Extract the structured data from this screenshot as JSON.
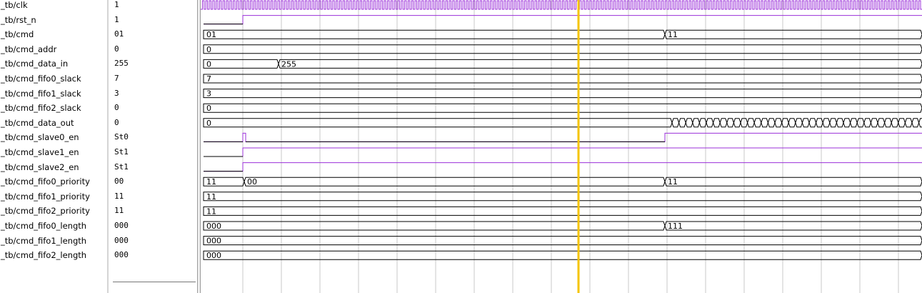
{
  "signals": [
    {
      "name": "_tb/clk",
      "value": "1"
    },
    {
      "name": "_tb/rst_n",
      "value": "1"
    },
    {
      "name": "_tb/cmd",
      "value": "01"
    },
    {
      "name": "_tb/cmd_addr",
      "value": "0"
    },
    {
      "name": "_tb/cmd_data_in",
      "value": "255"
    },
    {
      "name": "_tb/cmd_fifo0_slack",
      "value": "7"
    },
    {
      "name": "_tb/cmd_fifo1_slack",
      "value": "3"
    },
    {
      "name": "_tb/cmd_fifo2_slack",
      "value": "0"
    },
    {
      "name": "_tb/cmd_data_out",
      "value": "0"
    },
    {
      "name": "_tb/cmd_slave0_en",
      "value": "St0"
    },
    {
      "name": "_tb/cmd_slave1_en",
      "value": "St1"
    },
    {
      "name": "_tb/cmd_slave2_en",
      "value": "St1"
    },
    {
      "name": "_tb/cmd_fifo0_priority",
      "value": "00"
    },
    {
      "name": "_tb/cmd_fifo1_priority",
      "value": "11"
    },
    {
      "name": "_tb/cmd_fifo2_priority",
      "value": "11"
    },
    {
      "name": "_tb/cmd_fifo0_length",
      "value": "000"
    },
    {
      "name": "_tb/cmd_fifo1_length",
      "value": "000"
    },
    {
      "name": "_tb/cmd_fifo2_length",
      "value": "000"
    }
  ],
  "bus_labels": {
    "cmd": [
      "01",
      "11"
    ],
    "cmd_addr": [
      "0"
    ],
    "cmd_data_in": [
      "0",
      "255"
    ],
    "cmd_fifo0_slack": [
      "7"
    ],
    "cmd_fifo1_slack": [
      "3"
    ],
    "cmd_fifo2_slack": [
      "0"
    ],
    "cmd_data_out": [
      "0"
    ],
    "cmd_fifo0_priority": [
      "11",
      "00",
      "11"
    ],
    "cmd_fifo1_priority": [
      "11"
    ],
    "cmd_fifo2_priority": [
      "11"
    ],
    "cmd_fifo0_length": [
      "000",
      "111"
    ],
    "cmd_fifo1_length": [
      "000"
    ],
    "cmd_fifo2_length": [
      "000"
    ]
  },
  "colors": {
    "wave_bg": "#ffffff",
    "grid": "#c8c8c8",
    "logic_high": "#9b30d9",
    "logic_low": "#000000",
    "bus": "#000000",
    "cursor": "#f5c400"
  }
}
